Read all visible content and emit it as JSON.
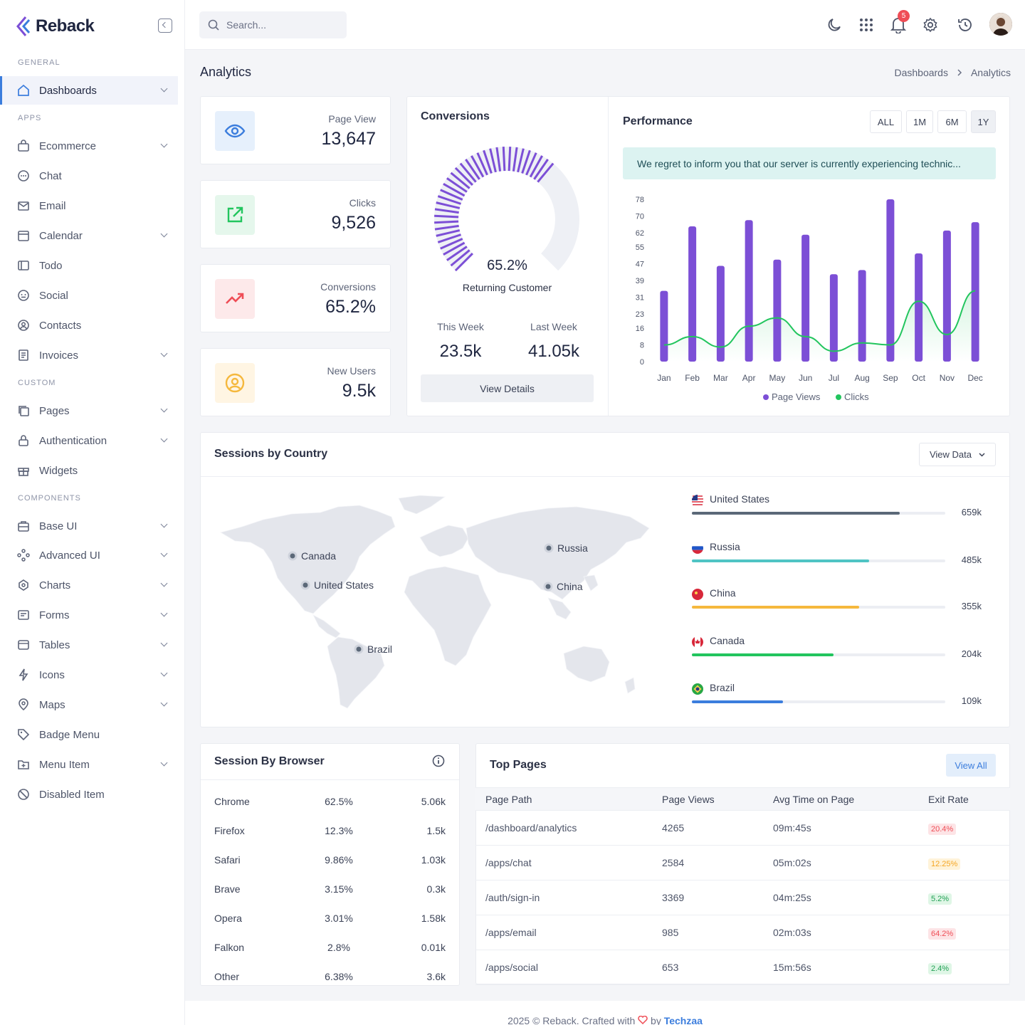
{
  "brand": {
    "name": "Reback"
  },
  "sidebar": {
    "sections": {
      "general": "General",
      "apps": "Apps",
      "custom": "Custom",
      "components": "Components"
    },
    "items": [
      {
        "label": "Dashboards",
        "icon": "home-icon"
      },
      {
        "label": "Ecommerce",
        "icon": "bag-icon"
      },
      {
        "label": "Chat",
        "icon": "chat-icon"
      },
      {
        "label": "Email",
        "icon": "mail-icon"
      },
      {
        "label": "Calendar",
        "icon": "calendar-icon"
      },
      {
        "label": "Todo",
        "icon": "todo-icon"
      },
      {
        "label": "Social",
        "icon": "social-icon"
      },
      {
        "label": "Contacts",
        "icon": "contact-icon"
      },
      {
        "label": "Invoices",
        "icon": "invoice-icon"
      },
      {
        "label": "Pages",
        "icon": "pages-icon"
      },
      {
        "label": "Authentication",
        "icon": "lock-icon"
      },
      {
        "label": "Widgets",
        "icon": "gift-icon"
      },
      {
        "label": "Base UI",
        "icon": "briefcase-icon"
      },
      {
        "label": "Advanced UI",
        "icon": "nodes-icon"
      },
      {
        "label": "Charts",
        "icon": "pie-icon"
      },
      {
        "label": "Forms",
        "icon": "form-icon"
      },
      {
        "label": "Tables",
        "icon": "table-icon"
      },
      {
        "label": "Icons",
        "icon": "bolt-icon"
      },
      {
        "label": "Maps",
        "icon": "pin-icon"
      },
      {
        "label": "Badge Menu",
        "icon": "tag-icon"
      },
      {
        "label": "Menu Item",
        "icon": "folder-icon"
      },
      {
        "label": "Disabled Item",
        "icon": "ban-icon"
      }
    ]
  },
  "topbar": {
    "search_placeholder": "Search...",
    "notification_count": "5"
  },
  "page": {
    "title": "Analytics",
    "breadcrumb": [
      "Dashboards",
      "Analytics"
    ]
  },
  "stats": [
    {
      "label": "Page View",
      "value": "13,647",
      "icon": "eye-icon",
      "color": "#3b7ddd"
    },
    {
      "label": "Clicks",
      "value": "9,526",
      "icon": "external-link-icon",
      "color": "#22c55e"
    },
    {
      "label": "Conversions",
      "value": "65.2%",
      "icon": "trend-up-icon",
      "color": "#ef4d56"
    },
    {
      "label": "New Users",
      "value": "9.5k",
      "icon": "user-circle-icon",
      "color": "#f5b83d"
    }
  ],
  "conversions": {
    "title": "Conversions",
    "percent": "65.2%",
    "percent_value": 65.2,
    "label": "Returning Customer",
    "this_week_label": "This Week",
    "this_week": "23.5k",
    "last_week_label": "Last Week",
    "last_week": "41.05k",
    "button": "View Details"
  },
  "performance": {
    "title": "Performance",
    "ranges": [
      "ALL",
      "1M",
      "6M",
      "1Y"
    ],
    "active_range": "1Y",
    "alert": "We regret to inform you that our server is currently experiencing technic..."
  },
  "chart_data": {
    "type": "bar",
    "categories": [
      "Jan",
      "Feb",
      "Mar",
      "Apr",
      "May",
      "Jun",
      "Jul",
      "Aug",
      "Sep",
      "Oct",
      "Nov",
      "Dec"
    ],
    "yticks": [
      0,
      8,
      16,
      23,
      31,
      39,
      47,
      55,
      62,
      70,
      78
    ],
    "ylim": [
      0,
      78
    ],
    "series": [
      {
        "name": "Page Views",
        "type": "bar",
        "color": "#7c4fd6",
        "values": [
          34,
          65,
          46,
          68,
          49,
          61,
          42,
          44,
          78,
          52,
          63,
          67
        ]
      },
      {
        "name": "Clicks",
        "type": "area",
        "color": "#22c55e",
        "values": [
          8,
          12,
          7,
          17,
          21,
          12,
          5,
          9,
          8,
          29,
          13,
          34
        ]
      }
    ],
    "legend": "bottom"
  },
  "sessions_country": {
    "title": "Sessions by Country",
    "button": "View Data",
    "markers": [
      "Canada",
      "United States",
      "Russia",
      "China",
      "Brazil"
    ],
    "rows": [
      {
        "name": "United States",
        "value": "659k",
        "fraction": 0.82,
        "color": "#5b6878"
      },
      {
        "name": "Russia",
        "value": "485k",
        "fraction": 0.7,
        "color": "#4fc4c4"
      },
      {
        "name": "China",
        "value": "355k",
        "fraction": 0.66,
        "color": "#f5b83d"
      },
      {
        "name": "Canada",
        "value": "204k",
        "fraction": 0.56,
        "color": "#22c55e"
      },
      {
        "name": "Brazil",
        "value": "109k",
        "fraction": 0.36,
        "color": "#3b7ddd"
      }
    ]
  },
  "browser": {
    "title": "Session By Browser",
    "rows": [
      {
        "name": "Chrome",
        "percent": "62.5%",
        "value": "5.06k"
      },
      {
        "name": "Firefox",
        "percent": "12.3%",
        "value": "1.5k"
      },
      {
        "name": "Safari",
        "percent": "9.86%",
        "value": "1.03k"
      },
      {
        "name": "Brave",
        "percent": "3.15%",
        "value": "0.3k"
      },
      {
        "name": "Opera",
        "percent": "3.01%",
        "value": "1.58k"
      },
      {
        "name": "Falkon",
        "percent": "2.8%",
        "value": "0.01k"
      },
      {
        "name": "Other",
        "percent": "6.38%",
        "value": "3.6k"
      }
    ]
  },
  "top_pages": {
    "title": "Top Pages",
    "button": "View All",
    "columns": [
      "Page Path",
      "Page Views",
      "Avg Time on Page",
      "Exit Rate"
    ],
    "rows": [
      {
        "path": "/dashboard/analytics",
        "views": "4265",
        "time": "09m:45s",
        "exit": "20.4%",
        "tone": "danger"
      },
      {
        "path": "/apps/chat",
        "views": "2584",
        "time": "05m:02s",
        "exit": "12.25%",
        "tone": "warning"
      },
      {
        "path": "/auth/sign-in",
        "views": "3369",
        "time": "04m:25s",
        "exit": "5.2%",
        "tone": "success"
      },
      {
        "path": "/apps/email",
        "views": "985",
        "time": "02m:03s",
        "exit": "64.2%",
        "tone": "danger"
      },
      {
        "path": "/apps/social",
        "views": "653",
        "time": "15m:56s",
        "exit": "2.4%",
        "tone": "success"
      }
    ]
  },
  "footer": {
    "text": "2025 © Reback. Crafted with",
    "by": "by",
    "author": "Techzaa"
  }
}
